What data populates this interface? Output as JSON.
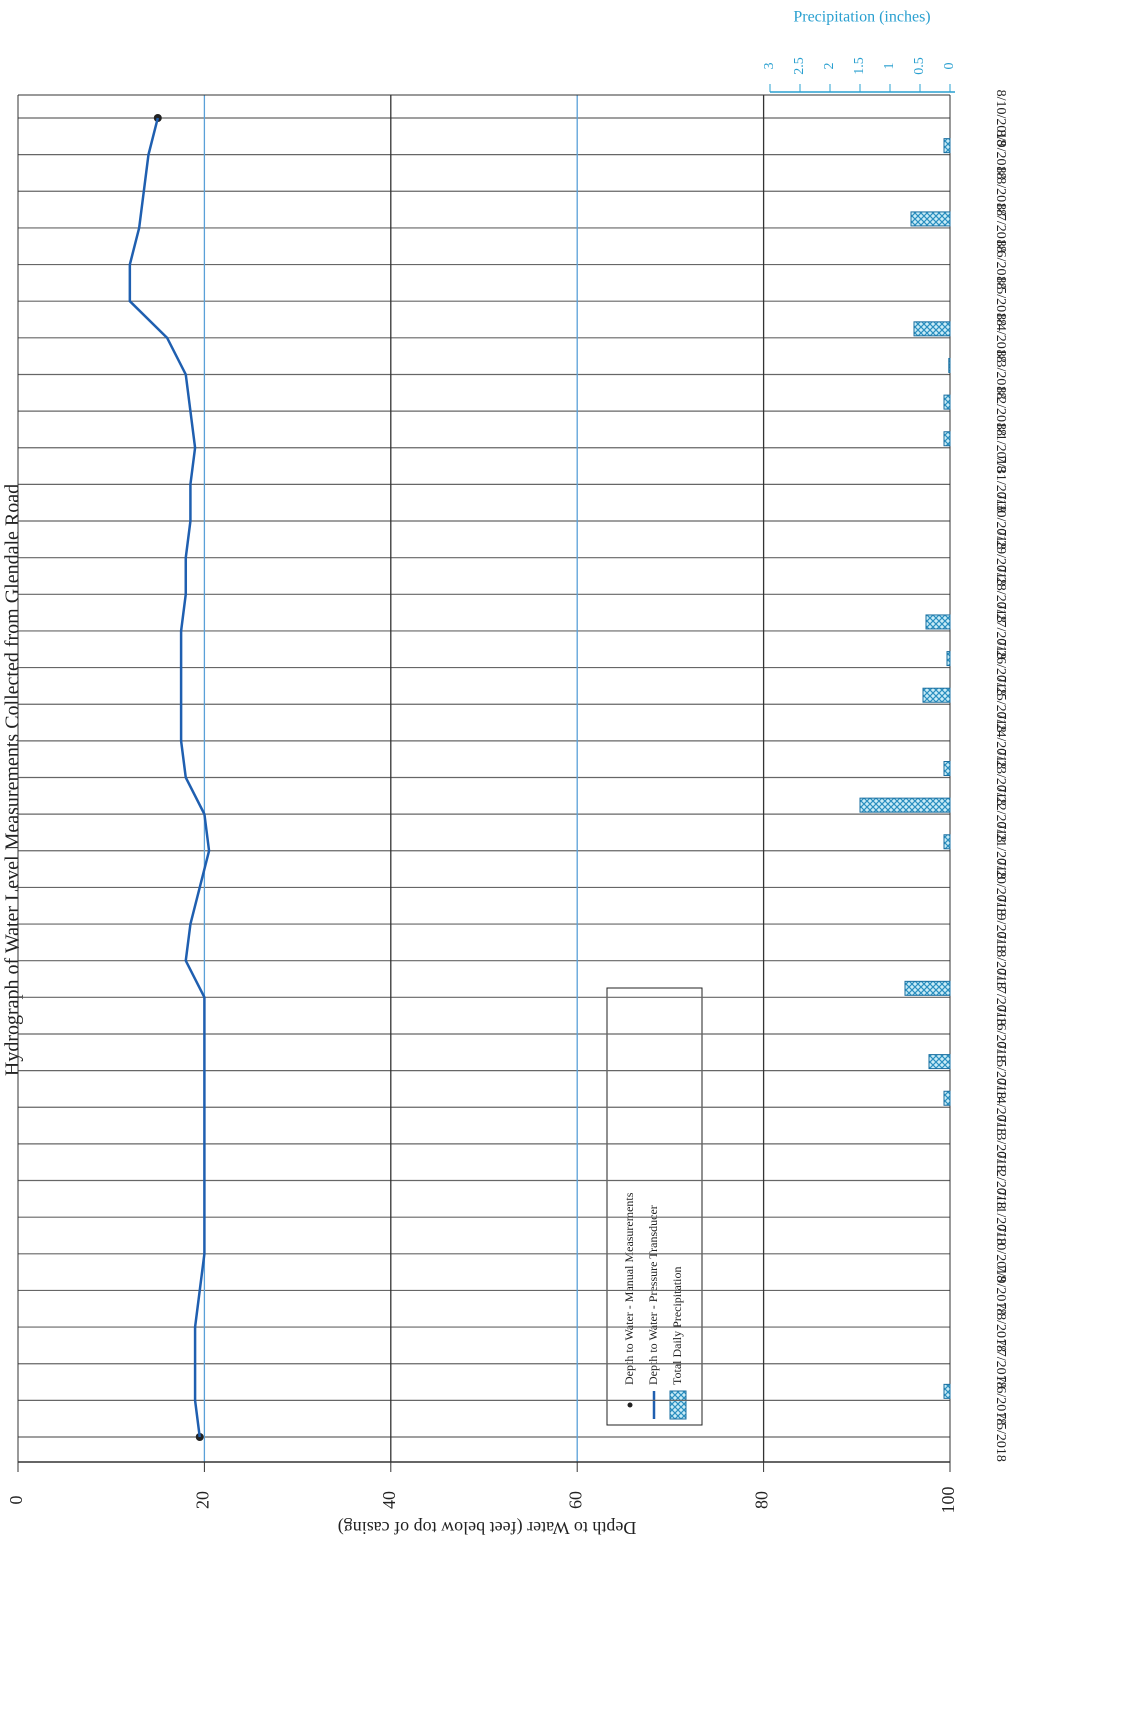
{
  "chart_data": {
    "type": "line",
    "title": "Hydrograph of Water Level Measurements Collected from Glendale Road",
    "y_label": "Depth to Water (feet below top of casing)",
    "y2_label": "Precipitation (inches)",
    "categories": [
      "7/5/2018",
      "7/6/2018",
      "7/7/2018",
      "7/8/2018",
      "7/9/2018",
      "7/10/2018",
      "7/11/2018",
      "7/12/2018",
      "7/13/2018",
      "7/14/2018",
      "7/15/2018",
      "7/16/2018",
      "7/17/2018",
      "7/18/2018",
      "7/19/2018",
      "7/20/2018",
      "7/21/2018",
      "7/22/2018",
      "7/23/2018",
      "7/24/2018",
      "7/25/2018",
      "7/26/2018",
      "7/27/2018",
      "7/28/2018",
      "7/29/2018",
      "7/30/2018",
      "7/31/2018",
      "8/1/2018",
      "8/2/2018",
      "8/3/2018",
      "8/4/2018",
      "8/5/2018",
      "8/6/2018",
      "8/7/2018",
      "8/8/2018",
      "8/9/2018",
      "8/10/2018"
    ],
    "series": [
      {
        "name": "Depth to Water - Manual Measurements",
        "type": "scatter",
        "color": "#222222",
        "values": [
          19.5,
          null,
          null,
          null,
          null,
          null,
          null,
          null,
          null,
          null,
          null,
          null,
          null,
          null,
          null,
          null,
          null,
          null,
          null,
          null,
          null,
          null,
          null,
          null,
          null,
          null,
          null,
          null,
          null,
          null,
          null,
          null,
          null,
          null,
          null,
          null,
          15
        ]
      },
      {
        "name": "Depth to Water - Pressure Transducer",
        "type": "line",
        "color": "#1f5fb0",
        "values": [
          19.5,
          19,
          19,
          19,
          19.5,
          20,
          20,
          20,
          20,
          20,
          20,
          20,
          20,
          18,
          18.5,
          19.5,
          20.5,
          20,
          18,
          17.5,
          17.5,
          17.5,
          17.5,
          18,
          18,
          18.5,
          18.5,
          19,
          18.5,
          18,
          16,
          12,
          12,
          13,
          13.5,
          14,
          15
        ]
      },
      {
        "name": "Total Daily Precipitation",
        "type": "bar",
        "axis": "y2",
        "color": "#3ab0d8",
        "values": [
          0,
          0.1,
          0,
          0,
          0,
          0,
          0,
          0,
          0,
          0.1,
          0.35,
          0,
          0.75,
          0,
          0,
          0,
          0.1,
          1.5,
          0.1,
          0,
          0.45,
          0.05,
          0.4,
          0,
          0,
          0,
          0,
          0.1,
          0.1,
          0.02,
          0.6,
          0,
          0,
          0.65,
          0,
          0.1,
          0
        ]
      }
    ],
    "ylim": [
      0,
      100
    ],
    "yticks": [
      0,
      20,
      40,
      60,
      80,
      100
    ],
    "y2lim": [
      0,
      3
    ],
    "y2ticks": [
      0,
      0.5,
      1,
      1.5,
      2,
      2.5,
      3
    ],
    "grid": true
  }
}
